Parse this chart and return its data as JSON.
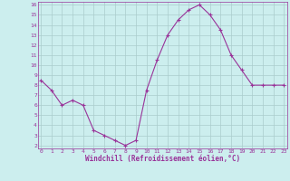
{
  "x": [
    0,
    1,
    2,
    3,
    4,
    5,
    6,
    7,
    8,
    9,
    10,
    11,
    12,
    13,
    14,
    15,
    16,
    17,
    18,
    19,
    20,
    21,
    22,
    23
  ],
  "y": [
    8.5,
    7.5,
    6.0,
    6.5,
    6.0,
    3.5,
    3.0,
    2.5,
    2.0,
    2.5,
    7.5,
    10.5,
    13.0,
    14.5,
    15.5,
    16.0,
    15.0,
    13.5,
    11.0,
    9.5,
    8.0,
    8.0,
    8.0,
    8.0
  ],
  "line_color": "#993399",
  "marker": "+",
  "bg_color": "#cceeee",
  "grid_color": "#aacccc",
  "xlabel": "Windchill (Refroidissement éolien,°C)",
  "xlabel_color": "#993399",
  "tick_color": "#993399",
  "ylim_min": 2,
  "ylim_max": 16,
  "xlim_min": 0,
  "xlim_max": 23,
  "yticks": [
    2,
    3,
    4,
    5,
    6,
    7,
    8,
    9,
    10,
    11,
    12,
    13,
    14,
    15,
    16
  ],
  "xticks": [
    0,
    1,
    2,
    3,
    4,
    5,
    6,
    7,
    8,
    9,
    10,
    11,
    12,
    13,
    14,
    15,
    16,
    17,
    18,
    19,
    20,
    21,
    22,
    23
  ],
  "spine_color": "#993399"
}
